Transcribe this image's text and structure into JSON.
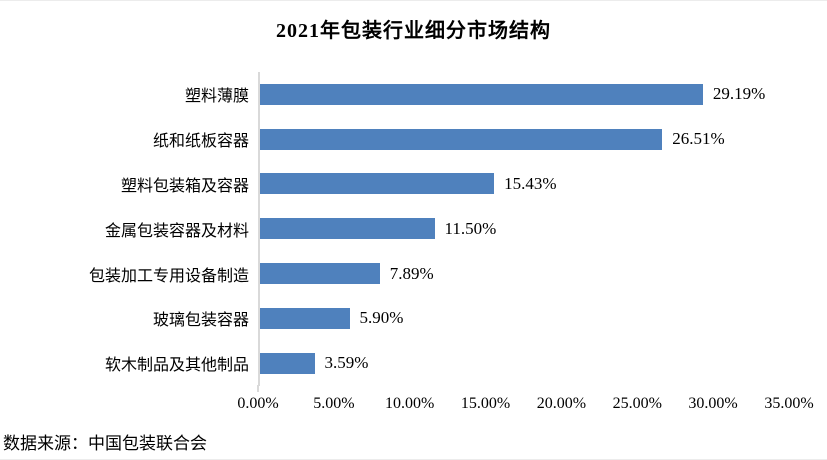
{
  "title": "2021年包装行业细分市场结构",
  "source": "数据来源：中国包装联合会",
  "chart_data": {
    "type": "bar",
    "orientation": "horizontal",
    "title": "2021年包装行业细分市场结构",
    "categories": [
      "塑料薄膜",
      "纸和纸板容器",
      "塑料包装箱及容器",
      "金属包装容器及材料",
      "包装加工专用设备制造",
      "玻璃包装容器",
      "软木制品及其他制品"
    ],
    "values": [
      29.19,
      26.51,
      15.43,
      11.5,
      7.89,
      5.9,
      3.59
    ],
    "value_labels": [
      "29.19%",
      "26.51%",
      "15.43%",
      "11.50%",
      "7.89%",
      "5.90%",
      "3.59%"
    ],
    "xlim": [
      0,
      35
    ],
    "x_tick_values": [
      0,
      5,
      10,
      15,
      20,
      25,
      30,
      35
    ],
    "x_tick_labels": [
      "0.00%",
      "5.00%",
      "10.00%",
      "15.00%",
      "20.00%",
      "25.00%",
      "30.00%",
      "35.00%"
    ],
    "xlabel": "",
    "ylabel": "",
    "grid": false,
    "legend": false,
    "bar_color": "#4F81BD",
    "axis_color": "#D9D9D9",
    "source_note": "数据来源：中国包装联合会"
  }
}
